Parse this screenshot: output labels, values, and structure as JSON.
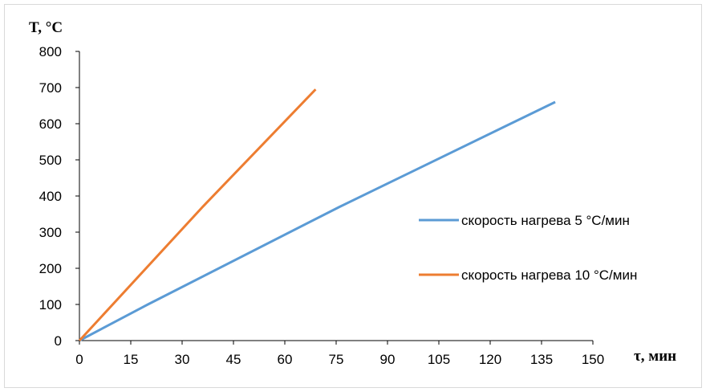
{
  "chart_data": {
    "type": "line",
    "ylabel": "T, °C",
    "xlabel": "τ, мин",
    "xlim": [
      0,
      150
    ],
    "ylim": [
      0,
      800
    ],
    "x_ticks": [
      "0",
      "15",
      "30",
      "45",
      "60",
      "75",
      "90",
      "105",
      "120",
      "135",
      "150"
    ],
    "y_ticks": [
      "0",
      "100",
      "200",
      "300",
      "400",
      "500",
      "600",
      "700",
      "800"
    ],
    "grid": false,
    "legend_position": "right",
    "series": [
      {
        "name": "скорость нагрева 5 °С/мин",
        "color": "#5b9bd5",
        "points": [
          [
            0,
            0
          ],
          [
            20,
            100
          ],
          [
            76,
            370
          ],
          [
            139,
            660
          ]
        ]
      },
      {
        "name": "скорость нагрева 10 °С/мин",
        "color": "#ed7d31",
        "points": [
          [
            0,
            0
          ],
          [
            36,
            370
          ],
          [
            69,
            695
          ]
        ]
      }
    ]
  }
}
